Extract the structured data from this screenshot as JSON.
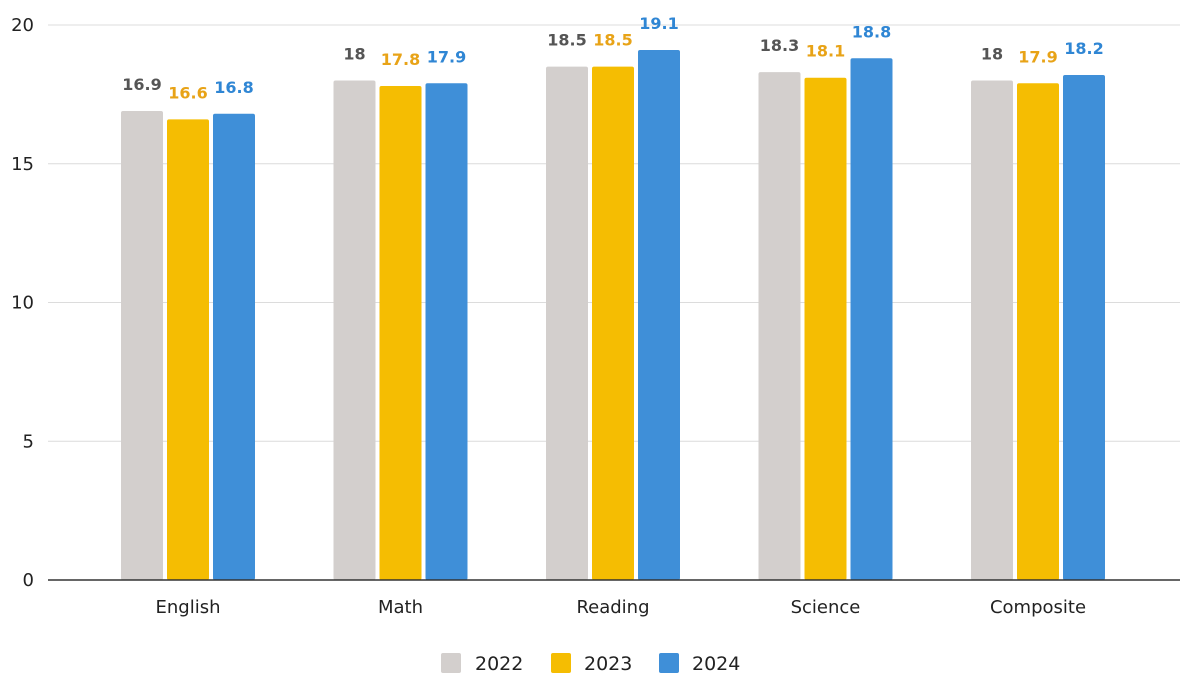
{
  "chart_data": {
    "type": "bar",
    "categories": [
      "English",
      "Math",
      "Reading",
      "Science",
      "Composite"
    ],
    "series": [
      {
        "name": "2022",
        "color": "#d3cfcd",
        "label_color": "#555555",
        "values": [
          16.9,
          18,
          18.5,
          18.3,
          18
        ]
      },
      {
        "name": "2023",
        "color": "#f5bd02",
        "label_color": "#e8a317",
        "values": [
          16.6,
          17.8,
          18.5,
          18.1,
          17.9
        ]
      },
      {
        "name": "2024",
        "color": "#3f8fd8",
        "label_color": "#2f86d4",
        "values": [
          16.8,
          17.9,
          19.1,
          18.8,
          18.2
        ]
      }
    ],
    "yticks": [
      0,
      5,
      10,
      15,
      20
    ],
    "ylim": [
      0,
      20
    ],
    "grid": true,
    "legend_position": "bottom"
  }
}
